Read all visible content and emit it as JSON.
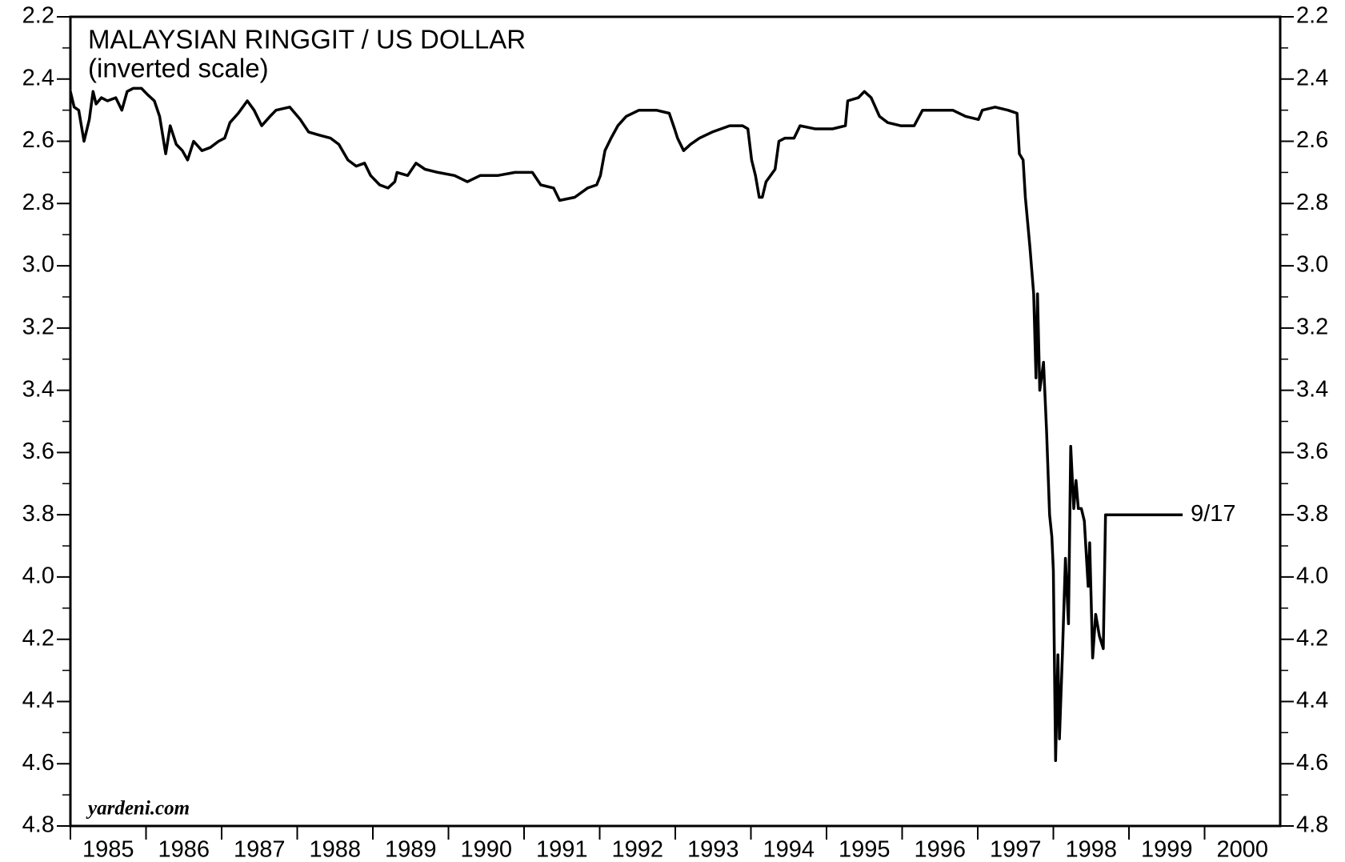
{
  "chart_data": {
    "type": "line",
    "title": "MALAYSIAN RINGGIT / US DOLLAR",
    "subtitle": "(inverted scale)",
    "source": "yardeni.com",
    "annotation": "9/17",
    "color": "#000000",
    "y_inverted": true,
    "ylim": [
      2.2,
      4.8
    ],
    "yticks": [
      2.2,
      2.4,
      2.6,
      2.8,
      {
        "value": 3,
        "label": "3.0"
      },
      3.2,
      3.4,
      3.6,
      3.8,
      {
        "value": 4,
        "label": "4.0"
      },
      4.2,
      4.4,
      4.6,
      4.8
    ],
    "y_minor_ticks": [
      2.3,
      2.5,
      2.7,
      2.9,
      3.1,
      3.3,
      3.5,
      3.7,
      3.9,
      4.1,
      4.3,
      4.5,
      4.7
    ],
    "xlim": [
      1985,
      2001
    ],
    "xticks": [
      1985,
      1986,
      1987,
      1988,
      1989,
      1990,
      1991,
      1992,
      1993,
      1994,
      1995,
      1996,
      1997,
      1998,
      1999,
      2000
    ],
    "x": [
      1985.0,
      1985.05,
      1985.11,
      1985.18,
      1985.25,
      1985.3,
      1985.34,
      1985.41,
      1985.49,
      1985.6,
      1985.68,
      1985.75,
      1985.83,
      1985.94,
      1986.02,
      1986.11,
      1986.18,
      1986.26,
      1986.32,
      1986.4,
      1986.48,
      1986.55,
      1986.63,
      1986.74,
      1986.85,
      1986.96,
      1987.04,
      1987.11,
      1987.22,
      1987.34,
      1987.43,
      1987.53,
      1987.64,
      1987.72,
      1987.9,
      1988.04,
      1988.15,
      1988.29,
      1988.44,
      1988.55,
      1988.67,
      1988.78,
      1988.89,
      1988.97,
      1989.09,
      1989.2,
      1989.29,
      1989.32,
      1989.46,
      1989.57,
      1989.69,
      1989.86,
      1990.08,
      1990.25,
      1990.42,
      1990.65,
      1990.88,
      1991.11,
      1991.22,
      1991.39,
      1991.47,
      1991.67,
      1991.84,
      1991.96,
      1992.01,
      1992.07,
      1992.15,
      1992.24,
      1992.35,
      1992.52,
      1992.75,
      1992.92,
      1992.99,
      1993.03,
      1993.11,
      1993.2,
      1993.32,
      1993.49,
      1993.72,
      1993.89,
      1993.96,
      1994.01,
      1994.06,
      1994.11,
      1994.15,
      1994.2,
      1994.32,
      1994.37,
      1994.45,
      1994.57,
      1994.65,
      1994.85,
      1995.08,
      1995.25,
      1995.28,
      1995.42,
      1995.5,
      1995.59,
      1995.7,
      1995.81,
      1995.98,
      1996.16,
      1996.27,
      1996.44,
      1996.67,
      1996.84,
      1997.01,
      1997.06,
      1997.23,
      1997.4,
      1997.52,
      1997.55,
      1997.6,
      1997.63,
      1997.69,
      1997.74,
      1997.77,
      1997.79,
      1997.82,
      1997.87,
      1997.91,
      1997.95,
      1997.98,
      1998.0,
      1998.03,
      1998.06,
      1998.08,
      1998.12,
      1998.16,
      1998.2,
      1998.23,
      1998.27,
      1998.3,
      1998.33,
      1998.37,
      1998.41,
      1998.46,
      1998.48,
      1998.52,
      1998.56,
      1998.61,
      1998.66,
      1998.69,
      1999.05,
      1999.1,
      1999.71
    ],
    "values": [
      2.44,
      2.49,
      2.5,
      2.6,
      2.53,
      2.44,
      2.48,
      2.46,
      2.47,
      2.46,
      2.5,
      2.44,
      2.43,
      2.43,
      2.45,
      2.47,
      2.52,
      2.64,
      2.55,
      2.61,
      2.63,
      2.66,
      2.6,
      2.63,
      2.62,
      2.6,
      2.59,
      2.54,
      2.51,
      2.47,
      2.5,
      2.55,
      2.52,
      2.5,
      2.49,
      2.53,
      2.57,
      2.58,
      2.59,
      2.61,
      2.66,
      2.68,
      2.67,
      2.71,
      2.74,
      2.75,
      2.73,
      2.7,
      2.71,
      2.67,
      2.69,
      2.7,
      2.71,
      2.73,
      2.71,
      2.71,
      2.7,
      2.7,
      2.74,
      2.75,
      2.79,
      2.78,
      2.75,
      2.74,
      2.71,
      2.63,
      2.59,
      2.55,
      2.52,
      2.5,
      2.5,
      2.51,
      2.56,
      2.59,
      2.63,
      2.61,
      2.59,
      2.57,
      2.55,
      2.55,
      2.56,
      2.66,
      2.71,
      2.78,
      2.78,
      2.73,
      2.69,
      2.6,
      2.59,
      2.59,
      2.55,
      2.56,
      2.56,
      2.55,
      2.47,
      2.46,
      2.44,
      2.46,
      2.52,
      2.54,
      2.55,
      2.55,
      2.5,
      2.5,
      2.5,
      2.52,
      2.53,
      2.5,
      2.49,
      2.5,
      2.51,
      2.64,
      2.66,
      2.78,
      2.94,
      3.09,
      3.36,
      3.09,
      3.4,
      3.31,
      3.53,
      3.8,
      3.87,
      3.98,
      4.59,
      4.25,
      4.52,
      4.25,
      3.94,
      4.15,
      3.58,
      3.78,
      3.69,
      3.78,
      3.78,
      3.82,
      4.03,
      3.89,
      4.26,
      4.12,
      4.19,
      4.23,
      3.8,
      3.8,
      3.8,
      3.8
    ]
  }
}
